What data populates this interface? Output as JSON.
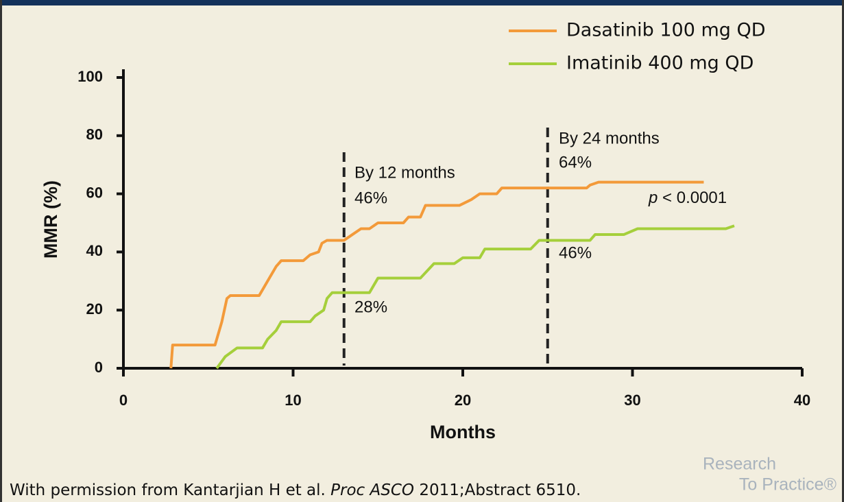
{
  "chart_data": {
    "type": "line",
    "series": [
      {
        "name": "Dasatinib 100 mg QD",
        "color": "#f39a3a",
        "x": [
          2.8,
          2.9,
          5.4,
          5.8,
          6.1,
          6.3,
          8,
          8.5,
          9,
          9.3,
          10.6,
          11,
          11.5,
          11.7,
          12,
          13,
          13.5,
          14,
          14.5,
          15,
          16.5,
          16.8,
          17.5,
          17.8,
          19.8,
          20.5,
          21,
          22,
          22.3,
          27.3,
          27.5,
          28,
          34.2
        ],
        "values": [
          0,
          8,
          8,
          16,
          24,
          25,
          25,
          30,
          35,
          37,
          37,
          39,
          40,
          43,
          44,
          44,
          46,
          48,
          48,
          50,
          50,
          52,
          52,
          56,
          56,
          58,
          60,
          60,
          62,
          62,
          63,
          64,
          64
        ]
      },
      {
        "name": "Imatinib 400 mg QD",
        "color": "#a5cf3b",
        "x": [
          5.5,
          6,
          6.7,
          8.2,
          8.5,
          9,
          9.3,
          11,
          11.3,
          11.8,
          12,
          12.3,
          14.5,
          15,
          17.5,
          18.3,
          19.5,
          20,
          21,
          21.3,
          24,
          24.5,
          27.5,
          27.8,
          29.5,
          30.3,
          35.5,
          36
        ],
        "values": [
          0,
          4,
          7,
          7,
          10,
          13,
          16,
          16,
          18,
          20,
          24,
          26,
          26,
          31,
          31,
          36,
          36,
          38,
          38,
          41,
          41,
          44,
          44,
          46,
          46,
          48,
          48,
          49
        ]
      }
    ],
    "xlabel": "Months",
    "ylabel": "MMR (%)",
    "xlim": [
      0,
      40
    ],
    "xticks": [
      0,
      10,
      20,
      30,
      40
    ],
    "ylim": [
      0,
      100
    ],
    "yticks": [
      0,
      20,
      40,
      60,
      80,
      100
    ],
    "vlines": [
      13,
      25
    ],
    "annotations": [
      "By 12 months",
      "46%",
      "28%",
      "By 24 months",
      "64%",
      "46%",
      "p",
      "< 0.0001"
    ],
    "legend": "upper right"
  },
  "footer": {
    "parts": [
      "With permission from Kantarjian H et al. ",
      "Proc ASCO",
      " 2011;Abstract 6510."
    ],
    "logo": [
      "Research",
      "To Practice®"
    ]
  }
}
